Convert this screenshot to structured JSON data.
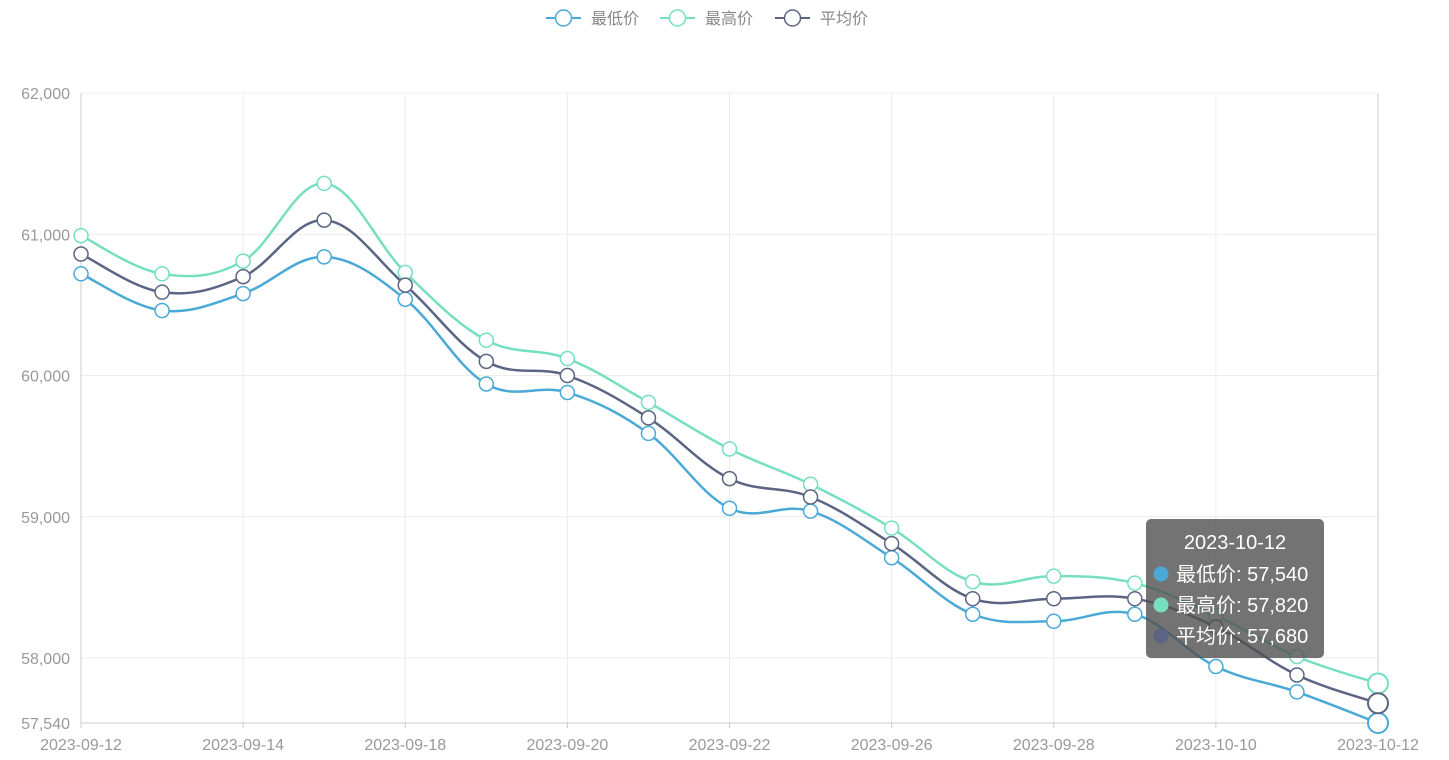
{
  "chart_data": {
    "type": "line",
    "categories": [
      "2023-09-12",
      "2023-09-13",
      "2023-09-14",
      "2023-09-15",
      "2023-09-18",
      "2023-09-19",
      "2023-09-20",
      "2023-09-21",
      "2023-09-22",
      "2023-09-25",
      "2023-09-26",
      "2023-09-27",
      "2023-09-28",
      "2023-10-09",
      "2023-10-10",
      "2023-10-11",
      "2023-10-12"
    ],
    "x_tick_labels": [
      "2023-09-12",
      "2023-09-14",
      "2023-09-18",
      "2023-09-20",
      "2023-09-22",
      "2023-09-26",
      "2023-09-28",
      "2023-10-10",
      "2023-10-12"
    ],
    "y_ticks": [
      57540,
      58000,
      59000,
      60000,
      61000,
      62000
    ],
    "y_tick_labels": [
      "57,540",
      "58,000",
      "59,000",
      "60,000",
      "61,000",
      "62,000"
    ],
    "ylim": [
      57540,
      62000
    ],
    "grid": true,
    "legend_position": "top-center",
    "series": [
      {
        "name": "最低价",
        "color": "#4aa9d6",
        "values": [
          60720,
          60460,
          60580,
          60840,
          60540,
          59940,
          59880,
          59590,
          59060,
          59040,
          58710,
          58310,
          58260,
          58310,
          57940,
          57760,
          57540
        ]
      },
      {
        "name": "最高价",
        "color": "#76dfbf",
        "values": [
          60990,
          60720,
          60810,
          61360,
          60730,
          60250,
          60120,
          59810,
          59480,
          59230,
          58920,
          58540,
          58580,
          58530,
          58300,
          58010,
          57820
        ]
      },
      {
        "name": "平均价",
        "color": "#5b6583",
        "values": [
          60860,
          60590,
          60700,
          61100,
          60640,
          60100,
          60000,
          59700,
          59270,
          59140,
          58810,
          58420,
          58420,
          58420,
          58220,
          57880,
          57680
        ]
      }
    ],
    "tooltip": {
      "title": "2023-10-12",
      "rows": [
        {
          "label": "最低价: 57,540",
          "color": "#4aa9d6"
        },
        {
          "label": "最高价: 57,820",
          "color": "#76dfbf"
        },
        {
          "label": "平均价: 57,680",
          "color": "#5b6583"
        }
      ]
    }
  }
}
